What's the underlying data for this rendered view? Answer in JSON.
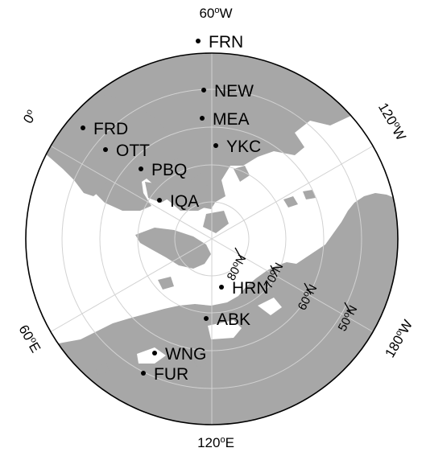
{
  "map": {
    "projection": "north-polar-stereographic",
    "land_color": "#a7a7a7",
    "grid_color": "#d2d2d2",
    "longitude_labels": [
      {
        "id": "lon-60w",
        "deg": "60",
        "sup": "o",
        "dir": "W"
      },
      {
        "id": "lon-120w",
        "deg": "120",
        "sup": "o",
        "dir": "W"
      },
      {
        "id": "lon-180w",
        "deg": "180",
        "sup": "o",
        "dir": "W"
      },
      {
        "id": "lon-120e",
        "deg": "120",
        "sup": "o",
        "dir": "E"
      },
      {
        "id": "lon-60e",
        "deg": "60",
        "sup": "o",
        "dir": "E"
      },
      {
        "id": "lon-0",
        "deg": "0",
        "sup": "o",
        "dir": ""
      }
    ],
    "latitude_labels": [
      {
        "id": "lat-80n",
        "deg": "80",
        "sup": "o",
        "dir": "N"
      },
      {
        "id": "lat-70n",
        "deg": "70",
        "sup": "o",
        "dir": "N"
      },
      {
        "id": "lat-60n",
        "deg": "60",
        "sup": "o",
        "dir": "N"
      },
      {
        "id": "lat-50n",
        "deg": "50",
        "sup": "o",
        "dir": "N"
      }
    ],
    "stations": [
      "FRN",
      "NEW",
      "MEA",
      "FRD",
      "YKC",
      "OTT",
      "PBQ",
      "IQA",
      "HRN",
      "ABK",
      "WNG",
      "FUR"
    ]
  }
}
